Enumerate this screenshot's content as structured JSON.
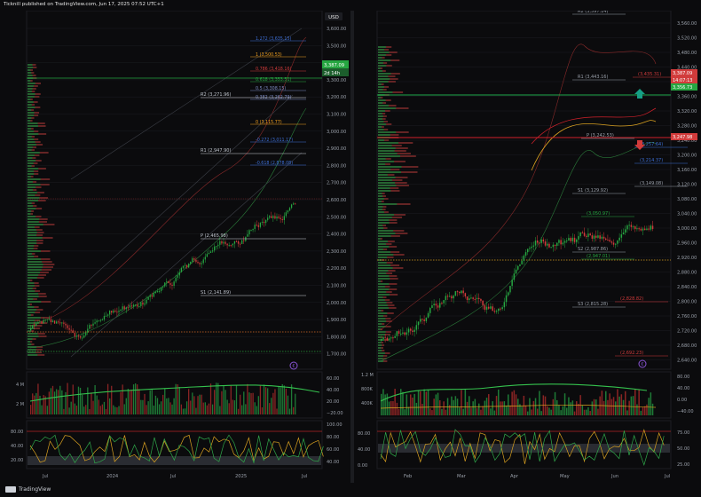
{
  "header": {
    "caption": "Ticknill published on TradingView.com, Jun 17, 2025 07:52 UTC+1"
  },
  "footer": {
    "brand": "TradingView"
  },
  "colors": {
    "up": "#26a641",
    "down": "#d13b3b",
    "bg": "#0b0b0d",
    "grid": "#1c1d22",
    "blue": "#3d6fd6",
    "orange": "#f0a020",
    "green_line": "#1f8a3a",
    "red_line": "#d1212b",
    "purple": "#8a55d6"
  },
  "left_chart": {
    "currency": "USD",
    "price_ticks": [
      "3,600.00",
      "3,500.00",
      "3,400.00",
      "3,300.00",
      "3,200.00",
      "3,100.00",
      "3,000.00",
      "2,900.00",
      "2,800.00",
      "2,700.00",
      "2,600.00",
      "2,500.00",
      "2,400.00",
      "2,300.00",
      "2,200.00",
      "2,100.00",
      "2,000.00",
      "1,900.00",
      "1,800.00",
      "1,700.00"
    ],
    "time_ticks": [
      "Jul",
      "2024",
      "Jul",
      "2025",
      "Jul"
    ],
    "fib_labels": [
      {
        "text": "1.272 (3,635.15)",
        "color": "#3d6fd6"
      },
      {
        "text": "1 (3,500.53)",
        "color": "#f0a020"
      },
      {
        "text": "0.786 (3,418.16)",
        "color": "#d13b3b"
      },
      {
        "text": "0.618 (3,353.51)",
        "color": "#26a641"
      },
      {
        "text": "0.5 (3,308.15)",
        "color": "#7d8cc4"
      },
      {
        "text": "0.382 (3,262.79)",
        "color": "#7d8cc4"
      },
      {
        "text": "0 (3,115.77)",
        "color": "#f0a020"
      },
      {
        "text": "-0.272 (3,011.17)",
        "color": "#3d6fd6"
      },
      {
        "text": "-0.618 (2,878.08)",
        "color": "#3d6fd6"
      }
    ],
    "pivot_labels": [
      {
        "text": "R2 (3,271.96)"
      },
      {
        "text": "R1 (2,947.90)"
      },
      {
        "text": "P (2,465.98)"
      },
      {
        "text": "S1 (2,141.89)"
      },
      {
        "text": "S2 (1,659.97)"
      }
    ],
    "price_badge": {
      "price": "3,387.09",
      "time": "2d 14h",
      "color": "#26a641"
    },
    "volume_ticks": [
      "4 M",
      "2 M"
    ],
    "volume_axis": [
      "60.00",
      "40.00",
      "20.00",
      "−20.00"
    ],
    "osc_ticks": [
      "80.00",
      "40.00",
      "20.00"
    ],
    "osc_axis": [
      "100.00",
      "80.00",
      "60.00",
      "40.00"
    ]
  },
  "right_chart": {
    "price_ticks": [
      "3,560.00",
      "3,520.00",
      "3,480.00",
      "3,440.00",
      "3,400.00",
      "3,360.00",
      "3,320.00",
      "3,280.00",
      "3,240.00",
      "3,200.00",
      "3,160.00",
      "3,120.00",
      "3,080.00",
      "3,040.00",
      "3,000.00",
      "2,960.00",
      "2,920.00",
      "2,880.00",
      "2,840.00",
      "2,800.00",
      "2,760.00",
      "2,720.00",
      "2,680.00",
      "2,640.00"
    ],
    "time_ticks": [
      "Feb",
      "Mar",
      "Apr",
      "May",
      "Jun",
      "Jul"
    ],
    "level_labels": [
      {
        "text": "R2 (3,597.14)",
        "color": "#9aa0aa"
      },
      {
        "text": "R1 (3,443.16)",
        "color": "#9aa0aa"
      },
      {
        "text": "(3,435.31)",
        "color": "#d13b3b"
      },
      {
        "text": "P (3,242.53)",
        "color": "#9aa0aa"
      },
      {
        "text": "(3,257.64)",
        "color": "#3d6fd6"
      },
      {
        "text": "(3,214.37)",
        "color": "#3d6fd6"
      },
      {
        "text": "(3,149.08)",
        "color": "#9aa0aa"
      },
      {
        "text": "S1 (3,129.92)",
        "color": "#9aa0aa"
      },
      {
        "text": "(3,050.97)",
        "color": "#26a641"
      },
      {
        "text": "S2 (2,987.86)",
        "color": "#9aa0aa"
      },
      {
        "text": "(2,947.01)",
        "color": "#26a641"
      },
      {
        "text": "(2,828.82)",
        "color": "#d13b3b"
      },
      {
        "text": "S3 (2,815.28)",
        "color": "#9aa0aa"
      },
      {
        "text": "(2,692.23)",
        "color": "#d13b3b"
      }
    ],
    "price_badges": [
      {
        "text": "3,387.09",
        "color": "#d13b3b"
      },
      {
        "text": "14:07:13",
        "color": "#d13b3b"
      },
      {
        "text": "3,356.73",
        "color": "#26a641"
      },
      {
        "text": "3,247.98",
        "color": "#d13b3b"
      }
    ],
    "volume_ticks": [
      "1.2 M",
      "800K",
      "400K"
    ],
    "volume_axis": [
      "80.00",
      "40.00",
      "0.00",
      "−40.00"
    ],
    "osc_ticks": [
      "80.00",
      "40.00",
      "0.00"
    ],
    "osc_axis": [
      "75.00",
      "50.00",
      "25.00"
    ]
  }
}
